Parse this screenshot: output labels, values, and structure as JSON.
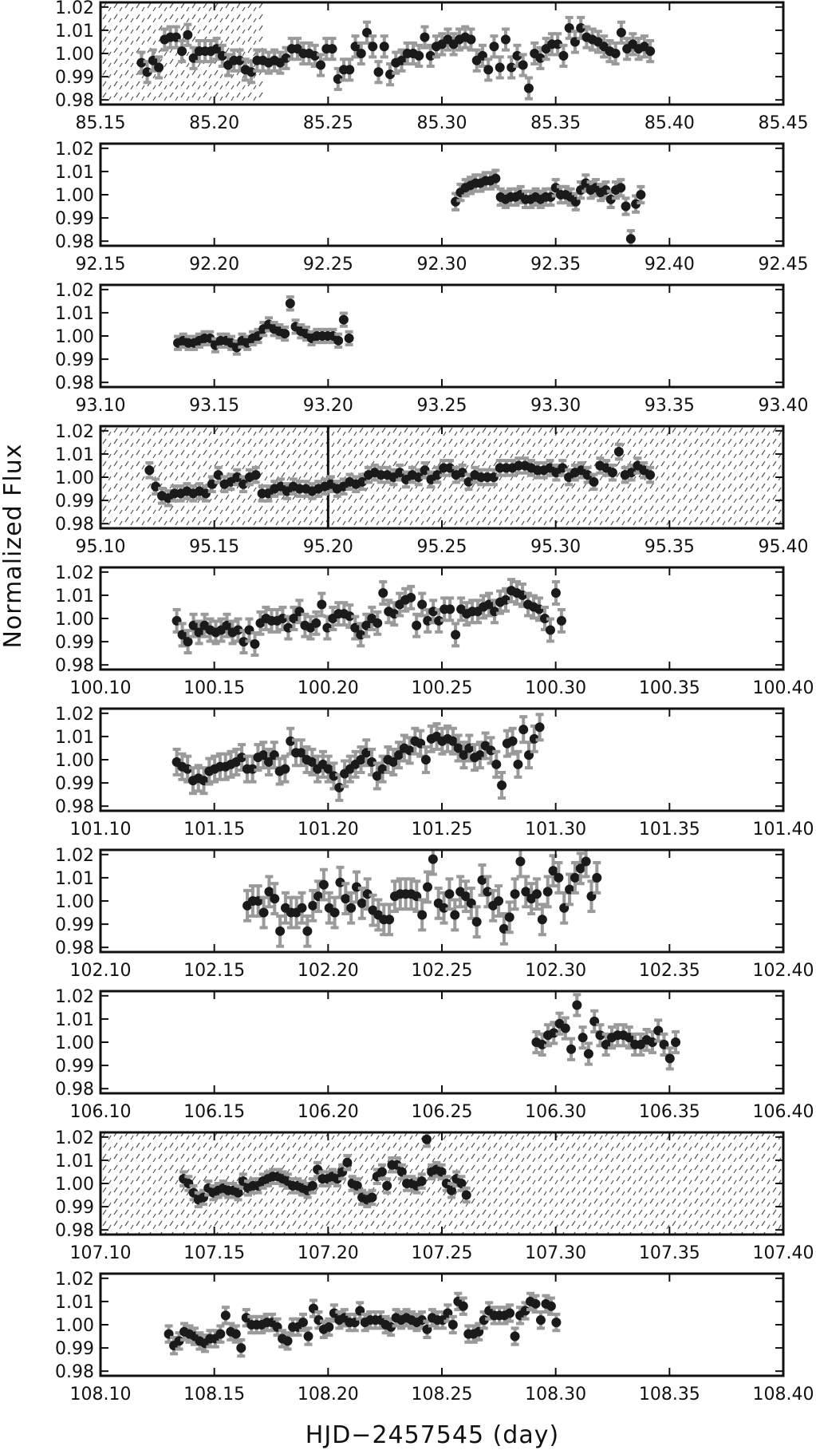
{
  "chart_data": {
    "type": "scatter",
    "xlabel": "HJD−2457545 (day)",
    "ylabel": "Normalized Flux",
    "ylim": [
      0.978,
      1.022
    ],
    "yticks": [
      "1.02",
      "1.01",
      "1.00",
      "0.99",
      "0.98"
    ],
    "ytick_values": [
      1.02,
      1.01,
      1.0,
      0.99,
      0.98
    ],
    "colors": {
      "points": "#1a1a1a",
      "errorbars": "#9a9a9a",
      "hatch": "#555555"
    },
    "panels": [
      {
        "xlim": [
          85.15,
          85.45
        ],
        "xticks": [
          "85.15",
          "85.20",
          "85.25",
          "85.30",
          "85.35",
          "85.40",
          "85.45"
        ],
        "shaded": [
          [
            85.15,
            85.222
          ]
        ],
        "markers": [],
        "x_start": 85.168,
        "x_step": 0.00254,
        "yerr": 0.0045,
        "y": [
          0.996,
          0.992,
          0.997,
          0.994,
          1.006,
          1.007,
          1.007,
          1.001,
          1.008,
          0.998,
          1.001,
          1.001,
          1.001,
          1.002,
          0.999,
          0.995,
          0.997,
          0.997,
          0.993,
          0.992,
          0.997,
          0.997,
          0.996,
          0.997,
          0.996,
          0.998,
          1.002,
          1.002,
          1.0,
          1.0,
          0.999,
          0.995,
          1.002,
          1.002,
          0.989,
          0.993,
          0.993,
          1.003,
          1.0,
          1.009,
          1.003,
          0.992,
          1.003,
          0.991,
          0.996,
          0.997,
          1.0,
          1.0,
          0.999,
          1.007,
          0.999,
          1.003,
          1.004,
          1.006,
          1.004,
          1.006,
          1.007,
          1.006,
          0.997,
          0.999,
          0.993,
          1.003,
          0.994,
          1.006,
          0.994,
          0.999,
          0.995,
          0.985,
          1.0,
          0.998,
          1.002,
          1.004,
          1.004,
          0.999,
          1.011,
          1.005,
          1.011,
          1.007,
          1.006,
          1.005,
          1.003,
          1.001,
          1.0,
          1.009,
          1.002,
          1.004,
          1.002,
          1.003,
          1.001
        ]
      },
      {
        "xlim": [
          92.15,
          92.45
        ],
        "xticks": [
          "92.15",
          "92.20",
          "92.25",
          "92.30",
          "92.35",
          "92.40",
          "92.45"
        ],
        "shaded": [],
        "markers": [],
        "x_start": 92.306,
        "x_step": 0.0022,
        "yerr": 0.0035,
        "y": [
          0.997,
          1.001,
          1.003,
          1.004,
          1.005,
          1.005,
          1.006,
          1.006,
          1.007,
          0.999,
          0.998,
          0.999,
          0.999,
          1.0,
          0.998,
          0.998,
          0.999,
          0.998,
          0.999,
          0.999,
          1.003,
          1.0,
          1.0,
          0.999,
          0.997,
          1.002,
          1.005,
          1.002,
          1.003,
          1.001,
          1.002,
          0.998,
          1.002,
          1.003,
          0.995,
          0.981,
          0.996,
          1.0
        ]
      },
      {
        "xlim": [
          93.1,
          93.4
        ],
        "xticks": [
          "93.10",
          "93.15",
          "93.20",
          "93.25",
          "93.30",
          "93.35",
          "93.40"
        ],
        "shaded": [],
        "markers": [],
        "x_start": 93.134,
        "x_step": 0.00235,
        "yerr": 0.0028,
        "y": [
          0.997,
          0.998,
          0.997,
          0.997,
          0.998,
          0.999,
          0.999,
          0.996,
          0.998,
          0.998,
          0.997,
          0.995,
          0.998,
          0.997,
          0.999,
          1.0,
          1.003,
          1.005,
          1.003,
          1.002,
          1.001,
          1.014,
          1.004,
          1.002,
          1.001,
          0.999,
          1.0,
          1.0,
          1.0,
          1.0,
          0.998,
          1.007,
          0.999
        ]
      },
      {
        "xlim": [
          95.1,
          95.4
        ],
        "xticks": [
          "95.10",
          "95.15",
          "95.20",
          "95.25",
          "95.30",
          "95.35",
          "95.40"
        ],
        "shaded": [
          [
            95.1,
            95.4
          ]
        ],
        "markers": [
          95.2
        ],
        "x_start": 95.1215,
        "x_step": 0.00275,
        "yerr": 0.0032,
        "y": [
          1.003,
          0.996,
          0.992,
          0.991,
          0.993,
          0.993,
          0.994,
          0.993,
          0.994,
          0.993,
          0.997,
          1.001,
          0.997,
          0.998,
          1.0,
          0.997,
          1.0,
          1.001,
          0.993,
          0.993,
          0.995,
          0.996,
          0.994,
          0.996,
          0.995,
          0.995,
          0.994,
          0.995,
          0.996,
          0.997,
          0.995,
          0.996,
          0.998,
          0.997,
          0.998,
          1.001,
          1.002,
          1.001,
          1.001,
          1.0,
          1.002,
          0.999,
          1.001,
          1.0,
          1.003,
          0.999,
          1.001,
          1.004,
          1.004,
          1.001,
          1.002,
          0.998,
          1.001,
          1.0,
          1.0,
          1.0,
          1.004,
          1.004,
          1.004,
          1.005,
          1.005,
          1.004,
          1.003,
          1.003,
          1.004,
          1.002,
          1.004,
          1.0,
          1.002,
          1.003,
          1.001,
          0.998,
          1.005,
          1.004,
          1.002,
          1.011,
          1.001,
          1.002,
          1.005,
          1.003,
          1.001
        ]
      },
      {
        "xlim": [
          100.1,
          100.4
        ],
        "xticks": [
          "100.10",
          "100.15",
          "100.20",
          "100.25",
          "100.30",
          "100.35",
          "100.40"
        ],
        "shaded": [],
        "markers": [],
        "x_start": 100.1335,
        "x_step": 0.00245,
        "yerr": 0.0048,
        "y": [
          0.999,
          0.993,
          0.99,
          0.997,
          0.994,
          0.997,
          0.995,
          0.994,
          0.995,
          0.997,
          0.994,
          0.995,
          0.99,
          0.995,
          0.989,
          0.998,
          1.0,
          0.999,
          0.999,
          1.0,
          0.996,
          1.0,
          1.003,
          0.997,
          0.996,
          0.998,
          1.006,
          0.996,
          1.0,
          1.002,
          1.002,
          1.001,
          0.996,
          0.993,
          0.997,
          1.0,
          0.998,
          1.011,
          1.003,
          1.002,
          1.006,
          1.008,
          1.009,
          0.997,
          1.006,
          0.999,
          1.003,
          0.999,
          1.004,
          1.004,
          0.993,
          1.004,
          1.002,
          1.003,
          1.003,
          1.005,
          1.006,
          1.003,
          1.007,
          1.008,
          1.012,
          1.011,
          1.01,
          1.006,
          1.005,
          1.004,
          1.0,
          0.995,
          1.011,
          0.999
        ]
      },
      {
        "xlim": [
          101.1,
          101.4
        ],
        "xticks": [
          "101.10",
          "101.15",
          "101.20",
          "101.25",
          "101.30",
          "101.35",
          "101.40"
        ],
        "shaded": [],
        "markers": [],
        "x_start": 101.1335,
        "x_step": 0.00238,
        "yerr": 0.0055,
        "y": [
          0.999,
          0.997,
          0.996,
          0.991,
          0.992,
          0.991,
          0.995,
          0.996,
          0.997,
          0.997,
          0.998,
          0.999,
          1.001,
          0.996,
          0.996,
          1.001,
          1.002,
          0.999,
          1.002,
          0.995,
          0.996,
          1.008,
          1.003,
          1.003,
          1.0,
          0.999,
          0.996,
          0.998,
          0.996,
          0.993,
          0.988,
          0.994,
          0.996,
          0.998,
          1.0,
          1.003,
          0.999,
          0.993,
          0.996,
          1.0,
          0.999,
          1.002,
          1.005,
          1.004,
          1.008,
          1.007,
          1.0,
          1.009,
          1.01,
          1.008,
          1.009,
          1.008,
          1.005,
          1.002,
          1.005,
          1.001,
          1.002,
          1.006,
          1.004,
          0.998,
          0.989,
          1.007,
          1.008,
          0.998,
          1.013,
          1.002,
          1.009,
          1.014
        ]
      },
      {
        "xlim": [
          102.1,
          102.4
        ],
        "xticks": [
          "102.10",
          "102.15",
          "102.20",
          "102.25",
          "102.30",
          "102.35",
          "102.40"
        ],
        "shaded": [],
        "markers": [],
        "x_start": 102.1645,
        "x_step": 0.0024,
        "yerr": 0.0065,
        "y": [
          0.998,
          1.0,
          1.0,
          0.995,
          1.004,
          1.001,
          0.987,
          0.997,
          0.995,
          0.995,
          0.997,
          0.987,
          0.998,
          1.002,
          1.007,
          0.997,
          0.995,
          1.008,
          1.001,
          0.997,
          1.006,
          0.999,
          1.003,
          0.996,
          0.994,
          0.992,
          0.992,
          1.002,
          1.003,
          1.003,
          1.003,
          1.002,
          0.994,
          1.006,
          1.018,
          0.999,
          0.997,
          1.003,
          0.994,
          1.004,
          1.002,
          0.999,
          0.991,
          1.009,
          1.004,
          0.998,
          1.0,
          0.988,
          0.993,
          1.003,
          1.017,
          1.004,
          1.001,
          1.003,
          0.992,
          1.004,
          1.013,
          1.01,
          0.997,
          1.005,
          1.01,
          1.014,
          1.017,
          1.002,
          1.01
        ]
      },
      {
        "xlim": [
          106.1,
          106.4
        ],
        "xticks": [
          "106.10",
          "106.15",
          "106.20",
          "106.25",
          "106.30",
          "106.35",
          "106.40"
        ],
        "shaded": [],
        "markers": [],
        "x_start": 106.2915,
        "x_step": 0.00255,
        "yerr": 0.0045,
        "y": [
          1.0,
          0.999,
          1.003,
          1.004,
          1.008,
          1.006,
          0.997,
          1.016,
          1.002,
          0.995,
          1.009,
          1.003,
          0.999,
          1.002,
          1.003,
          1.003,
          1.002,
          0.999,
          0.999,
          1.001,
          1.0,
          1.005,
          0.999,
          0.993,
          1.0
        ]
      },
      {
        "xlim": [
          107.1,
          107.4
        ],
        "xticks": [
          "107.10",
          "107.15",
          "107.20",
          "107.25",
          "107.30",
          "107.35",
          "107.40"
        ],
        "shaded": [
          [
            107.1,
            107.4
          ]
        ],
        "markers": [],
        "x_start": 107.1365,
        "x_step": 0.00218,
        "yerr": 0.003,
        "y": [
          1.002,
          1.0,
          0.996,
          0.993,
          0.994,
          0.998,
          0.996,
          0.997,
          0.998,
          0.997,
          0.997,
          0.996,
          1.001,
          0.998,
          0.999,
          0.999,
          1.001,
          1.002,
          1.003,
          1.003,
          1.002,
          1.001,
          0.999,
          0.999,
          0.998,
          0.997,
          0.999,
          1.006,
          1.002,
          1.002,
          1.003,
          1.002,
          1.005,
          1.009,
          1.0,
          0.999,
          0.994,
          0.993,
          0.994,
          1.003,
          1.005,
          0.999,
          1.008,
          1.008,
          1.005,
          1.0,
          1.0,
          0.999,
          1.001,
          1.019,
          1.005,
          1.006,
          1.005,
          1.0,
          0.997,
          1.002,
          1.0,
          0.995
        ]
      },
      {
        "xlim": [
          108.1,
          108.4
        ],
        "xticks": [
          "108.10",
          "108.15",
          "108.20",
          "108.25",
          "108.30",
          "108.35",
          "108.40"
        ],
        "shaded": [],
        "markers": [],
        "x_start": 108.13,
        "x_step": 0.00227,
        "yerr": 0.0035,
        "y": [
          0.996,
          0.991,
          0.993,
          0.997,
          0.996,
          0.995,
          0.993,
          0.992,
          0.994,
          0.994,
          0.996,
          1.004,
          0.997,
          0.996,
          0.99,
          1.003,
          1.0,
          1.0,
          1.0,
          1.001,
          1.001,
          0.999,
          0.994,
          0.993,
          0.999,
          0.999,
          1.001,
          0.995,
          1.007,
          1.002,
          0.998,
          0.999,
          1.005,
          1.002,
          1.003,
          1.001,
          1.001,
          1.006,
          1.001,
          1.002,
          1.002,
          1.002,
          1.0,
          0.999,
          1.003,
          1.002,
          1.003,
          1.002,
          1.001,
          1.002,
          0.998,
          1.003,
          1.002,
          1.002,
          1.005,
          1.0,
          1.01,
          1.008,
          0.996,
          0.996,
          0.997,
          1.002,
          1.006,
          1.004,
          1.004,
          1.004,
          1.005,
          0.995,
          1.004,
          1.006,
          1.01,
          1.009,
          1.002,
          1.009,
          1.008,
          1.001
        ]
      }
    ]
  }
}
